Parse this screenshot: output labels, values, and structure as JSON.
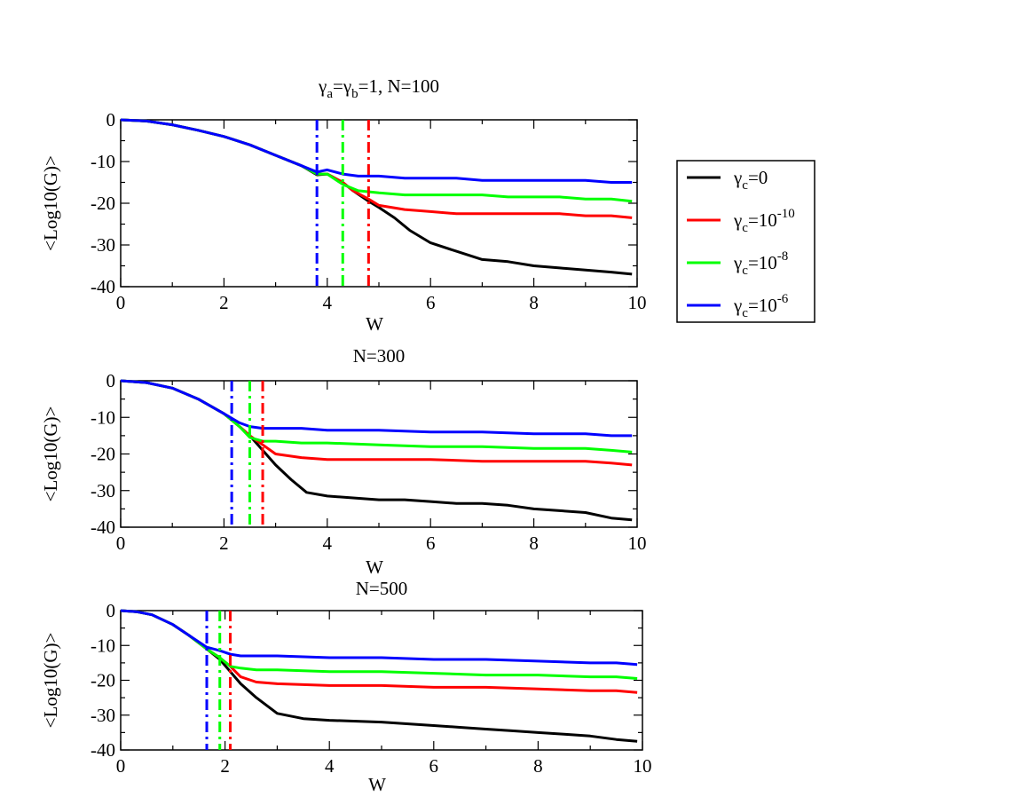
{
  "figure": {
    "legend": [
      {
        "symbol": "γ",
        "sub": "c",
        "text": "=0",
        "sup": "",
        "color": "#000000"
      },
      {
        "symbol": "γ",
        "sub": "c",
        "text": "=10",
        "sup": "-10",
        "color": "#ff0000"
      },
      {
        "symbol": "γ",
        "sub": "c",
        "text": "=10",
        "sup": "-8",
        "color": "#00ff00"
      },
      {
        "symbol": "γ",
        "sub": "c",
        "text": "=10",
        "sup": "-6",
        "color": "#0000ff"
      }
    ]
  },
  "chart_data": [
    {
      "type": "line",
      "title": {
        "parts": [
          {
            "t": "γ",
            "dy": "base"
          },
          {
            "t": "a",
            "dy": "sub"
          },
          {
            "t": "=γ",
            "dy": "base"
          },
          {
            "t": "b",
            "dy": "sub"
          },
          {
            "t": "=1, N=100",
            "dy": "base"
          }
        ]
      },
      "xlabel": "W",
      "ylabel": "<Log10(G)>",
      "xlim": [
        0,
        10
      ],
      "ylim": [
        -40,
        0
      ],
      "xticks": [
        0,
        2,
        4,
        6,
        8,
        10
      ],
      "yticks": [
        0,
        -10,
        -20,
        -30,
        -40
      ],
      "vlines": [
        {
          "x": 3.8,
          "color": "#0000ff"
        },
        {
          "x": 4.3,
          "color": "#00ff00"
        },
        {
          "x": 4.8,
          "color": "#ff0000"
        }
      ],
      "series": [
        {
          "name": "γc=0",
          "color": "#000000",
          "x": [
            0,
            0.5,
            1,
            1.5,
            2,
            2.5,
            3,
            3.5,
            3.8,
            4,
            4.3,
            4.5,
            4.8,
            5,
            5.3,
            5.6,
            6,
            6.5,
            7,
            7.5,
            8,
            8.5,
            9,
            9.5,
            9.9
          ],
          "values": [
            0,
            -0.3,
            -1.2,
            -2.5,
            -4,
            -6,
            -8.5,
            -11,
            -13.2,
            -13,
            -15,
            -17,
            -19.5,
            -21,
            -23.5,
            -26.5,
            -29.5,
            -31.5,
            -33.5,
            -34,
            -35,
            -35.5,
            -36,
            -36.5,
            -37
          ]
        },
        {
          "name": "γc=10^-10",
          "color": "#ff0000",
          "x": [
            0,
            0.5,
            1,
            1.5,
            2,
            2.5,
            3,
            3.5,
            3.8,
            4,
            4.3,
            4.5,
            4.8,
            5,
            5.5,
            6,
            6.5,
            7,
            7.5,
            8,
            8.5,
            9,
            9.5,
            9.9
          ],
          "values": [
            0,
            -0.3,
            -1.2,
            -2.5,
            -4,
            -6,
            -8.5,
            -11,
            -13,
            -13,
            -15,
            -17,
            -19,
            -20.5,
            -21.5,
            -22,
            -22.5,
            -22.5,
            -22.5,
            -22.5,
            -22.5,
            -23,
            -23,
            -23.5
          ]
        },
        {
          "name": "γc=10^-8",
          "color": "#00ff00",
          "x": [
            0,
            0.5,
            1,
            1.5,
            2,
            2.5,
            3,
            3.5,
            3.8,
            4,
            4.3,
            4.6,
            5,
            5.5,
            6,
            6.5,
            7,
            7.5,
            8,
            8.5,
            9,
            9.5,
            9.9
          ],
          "values": [
            0,
            -0.3,
            -1.2,
            -2.5,
            -4,
            -6,
            -8.5,
            -11,
            -13,
            -13,
            -15.5,
            -17,
            -17.5,
            -18,
            -18,
            -18,
            -18,
            -18.5,
            -18.5,
            -18.5,
            -19,
            -19,
            -19.5
          ]
        },
        {
          "name": "γc=10^-6",
          "color": "#0000ff",
          "x": [
            0,
            0.5,
            1,
            1.5,
            2,
            2.5,
            3,
            3.5,
            3.8,
            4,
            4.3,
            4.6,
            5,
            5.5,
            6,
            6.5,
            7,
            7.5,
            8,
            8.5,
            9,
            9.5,
            9.9
          ],
          "values": [
            0,
            -0.3,
            -1.2,
            -2.5,
            -4,
            -6,
            -8.5,
            -11,
            -12.5,
            -12,
            -13,
            -13.5,
            -13.5,
            -14,
            -14,
            -14,
            -14.5,
            -14.5,
            -14.5,
            -14.5,
            -14.5,
            -15,
            -15
          ]
        }
      ]
    },
    {
      "type": "line",
      "title": {
        "parts": [
          {
            "t": "N=300",
            "dy": "base"
          }
        ]
      },
      "xlabel": "W",
      "ylabel": "<Log10(G)>",
      "xlim": [
        0,
        10
      ],
      "ylim": [
        -40,
        0
      ],
      "xticks": [
        0,
        2,
        4,
        6,
        8,
        10
      ],
      "yticks": [
        0,
        -10,
        -20,
        -30,
        -40
      ],
      "vlines": [
        {
          "x": 2.15,
          "color": "#0000ff"
        },
        {
          "x": 2.5,
          "color": "#00ff00"
        },
        {
          "x": 2.75,
          "color": "#ff0000"
        }
      ],
      "series": [
        {
          "name": "γc=0",
          "color": "#000000",
          "x": [
            0,
            0.5,
            1,
            1.5,
            2,
            2.3,
            2.5,
            2.75,
            3,
            3.3,
            3.6,
            4,
            4.5,
            5,
            5.5,
            6,
            6.5,
            7,
            7.5,
            8,
            8.5,
            9,
            9.5,
            9.9
          ],
          "values": [
            0,
            -0.5,
            -2,
            -5,
            -9,
            -12.5,
            -15,
            -19,
            -23,
            -27,
            -30.5,
            -31.5,
            -32,
            -32.5,
            -32.5,
            -33,
            -33.5,
            -33.5,
            -34,
            -35,
            -35.5,
            -36,
            -37.5,
            -38
          ]
        },
        {
          "name": "γc=10^-10",
          "color": "#ff0000",
          "x": [
            0,
            0.5,
            1,
            1.5,
            2,
            2.3,
            2.5,
            2.75,
            3,
            3.5,
            4,
            5,
            6,
            7,
            8,
            9,
            9.5,
            9.9
          ],
          "values": [
            0,
            -0.5,
            -2,
            -5,
            -9,
            -12.5,
            -15,
            -17.5,
            -20,
            -21,
            -21.5,
            -21.5,
            -21.5,
            -22,
            -22,
            -22,
            -22.5,
            -23
          ]
        },
        {
          "name": "γc=10^-8",
          "color": "#00ff00",
          "x": [
            0,
            0.5,
            1,
            1.5,
            2,
            2.3,
            2.5,
            2.75,
            3,
            3.5,
            4,
            5,
            6,
            7,
            8,
            9,
            9.5,
            9.9
          ],
          "values": [
            0,
            -0.5,
            -2,
            -5,
            -9,
            -12.5,
            -15.5,
            -16.5,
            -16.5,
            -17,
            -17,
            -17.5,
            -18,
            -18,
            -18.5,
            -18.5,
            -19,
            -19.5
          ]
        },
        {
          "name": "γc=10^-6",
          "color": "#0000ff",
          "x": [
            0,
            0.5,
            1,
            1.5,
            2,
            2.3,
            2.5,
            2.75,
            3,
            3.5,
            4,
            5,
            6,
            7,
            8,
            9,
            9.5,
            9.9
          ],
          "values": [
            0,
            -0.5,
            -2,
            -5,
            -9,
            -11.5,
            -12.5,
            -13,
            -13,
            -13,
            -13.5,
            -13.5,
            -14,
            -14,
            -14.5,
            -14.5,
            -15,
            -15
          ]
        }
      ]
    },
    {
      "type": "line",
      "title": {
        "parts": [
          {
            "t": "N=500",
            "dy": "base"
          }
        ]
      },
      "xlabel": "W",
      "ylabel": "<Log10(G)>",
      "xlim": [
        0,
        10
      ],
      "ylim": [
        -40,
        0
      ],
      "xticks": [
        0,
        2,
        4,
        6,
        8,
        10
      ],
      "yticks": [
        0,
        -10,
        -20,
        -30,
        -40
      ],
      "vlines": [
        {
          "x": 1.65,
          "color": "#0000ff"
        },
        {
          "x": 1.9,
          "color": "#00ff00"
        },
        {
          "x": 2.1,
          "color": "#ff0000"
        }
      ],
      "series": [
        {
          "name": "γc=0",
          "color": "#000000",
          "x": [
            0,
            0.3,
            0.6,
            1,
            1.3,
            1.65,
            1.9,
            2.1,
            2.3,
            2.6,
            3,
            3.5,
            4,
            5,
            6,
            6.5,
            7,
            7.5,
            8,
            8.5,
            9,
            9.5,
            9.9
          ],
          "values": [
            0,
            -0.3,
            -1.2,
            -4,
            -7,
            -11,
            -14,
            -17.5,
            -21,
            -25,
            -29.5,
            -31,
            -31.5,
            -32,
            -33,
            -33.5,
            -34,
            -34.5,
            -35,
            -35.5,
            -36,
            -37,
            -37.5
          ]
        },
        {
          "name": "γc=10^-10",
          "color": "#ff0000",
          "x": [
            0,
            0.3,
            0.6,
            1,
            1.3,
            1.65,
            1.9,
            2.1,
            2.3,
            2.6,
            3,
            4,
            5,
            6,
            7,
            8,
            9,
            9.5,
            9.9
          ],
          "values": [
            0,
            -0.3,
            -1.2,
            -4,
            -7,
            -11,
            -13.5,
            -16,
            -19,
            -20.5,
            -21,
            -21.5,
            -21.5,
            -22,
            -22,
            -22.5,
            -23,
            -23,
            -23.5
          ]
        },
        {
          "name": "γc=10^-8",
          "color": "#00ff00",
          "x": [
            0,
            0.3,
            0.6,
            1,
            1.3,
            1.65,
            1.9,
            2.1,
            2.3,
            2.6,
            3,
            4,
            5,
            6,
            7,
            8,
            9,
            9.5,
            9.9
          ],
          "values": [
            0,
            -0.3,
            -1.2,
            -4,
            -7,
            -11,
            -13.5,
            -16,
            -16.5,
            -17,
            -17,
            -17.5,
            -17.5,
            -18,
            -18.5,
            -18.5,
            -19,
            -19,
            -19.5
          ]
        },
        {
          "name": "γc=10^-6",
          "color": "#0000ff",
          "x": [
            0,
            0.3,
            0.6,
            1,
            1.3,
            1.65,
            1.9,
            2.1,
            2.3,
            2.6,
            3,
            4,
            5,
            6,
            7,
            8,
            9,
            9.5,
            9.9
          ],
          "values": [
            0,
            -0.3,
            -1.2,
            -4,
            -7,
            -10.5,
            -11.5,
            -12.5,
            -13,
            -13,
            -13,
            -13.5,
            -13.5,
            -14,
            -14,
            -14.5,
            -15,
            -15,
            -15.5
          ]
        }
      ]
    }
  ]
}
